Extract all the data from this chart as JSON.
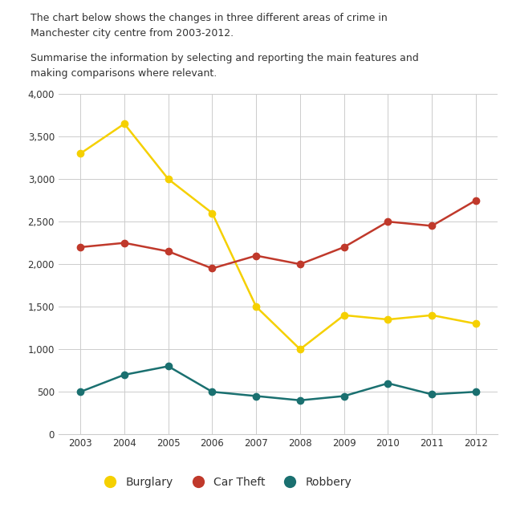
{
  "years": [
    2003,
    2004,
    2005,
    2006,
    2007,
    2008,
    2009,
    2010,
    2011,
    2012
  ],
  "burglary": [
    3300,
    3650,
    3000,
    2600,
    1500,
    1000,
    1400,
    1350,
    1400,
    1300
  ],
  "car_theft": [
    2200,
    2250,
    2150,
    1950,
    2100,
    2000,
    2200,
    2500,
    2450,
    2750
  ],
  "robbery": [
    500,
    700,
    800,
    500,
    450,
    400,
    450,
    600,
    470,
    500
  ],
  "burglary_color": "#f5d000",
  "car_theft_color": "#c0392b",
  "robbery_color": "#1a7070",
  "title_line1": "The chart below shows the changes in three different areas of crime in",
  "title_line2": "Manchester city centre from 2003-2012.",
  "subtitle_line1": "Summarise the information by selecting and reporting the main features and",
  "subtitle_line2": "making comparisons where relevant.",
  "ylim": [
    0,
    4000
  ],
  "yticks": [
    0,
    500,
    1000,
    1500,
    2000,
    2500,
    3000,
    3500,
    4000
  ],
  "ytick_labels": [
    "0",
    "500",
    "1,000",
    "1,500",
    "2,000",
    "2,500",
    "3,000",
    "3,500",
    "4,000"
  ],
  "background_color": "#ffffff",
  "grid_color": "#cccccc",
  "text_color": "#333333",
  "legend_labels": [
    "Burglary",
    "Car Theft",
    "Robbery"
  ],
  "marker": "o",
  "marker_size": 6,
  "line_width": 1.8,
  "text_fontsize": 9.0
}
